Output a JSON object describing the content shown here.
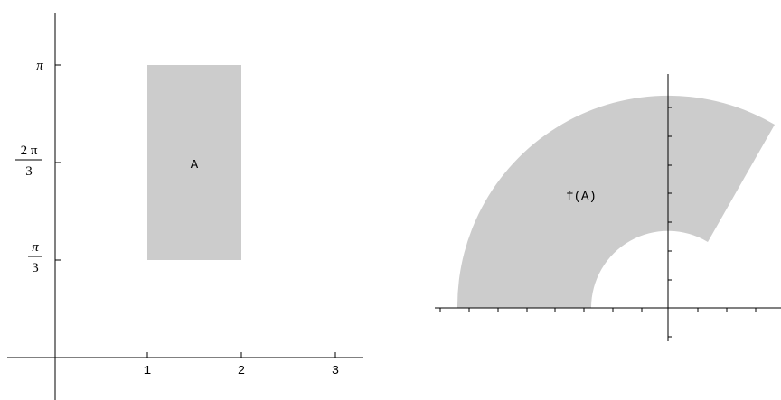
{
  "left_panel": {
    "x_ticks": [
      "1",
      "2",
      "3"
    ],
    "y_ticks": [
      {
        "value": "π/3",
        "numerator": "π",
        "denominator": "3"
      },
      {
        "value": "2π/3",
        "numerator": "2 π",
        "denominator": "3"
      },
      {
        "value": "π",
        "numerator": "π",
        "denominator": ""
      }
    ],
    "region": {
      "label": "A",
      "x_range": [
        1,
        2
      ],
      "y_range": [
        "π/3",
        "π"
      ]
    },
    "region_color": "#cccccc"
  },
  "right_panel": {
    "region": {
      "label": "f(A)",
      "inner_radius": 1,
      "outer_radius": 2,
      "angle_range": [
        "π/3",
        "π"
      ]
    },
    "region_color": "#cccccc"
  },
  "axis_color": "#000000"
}
